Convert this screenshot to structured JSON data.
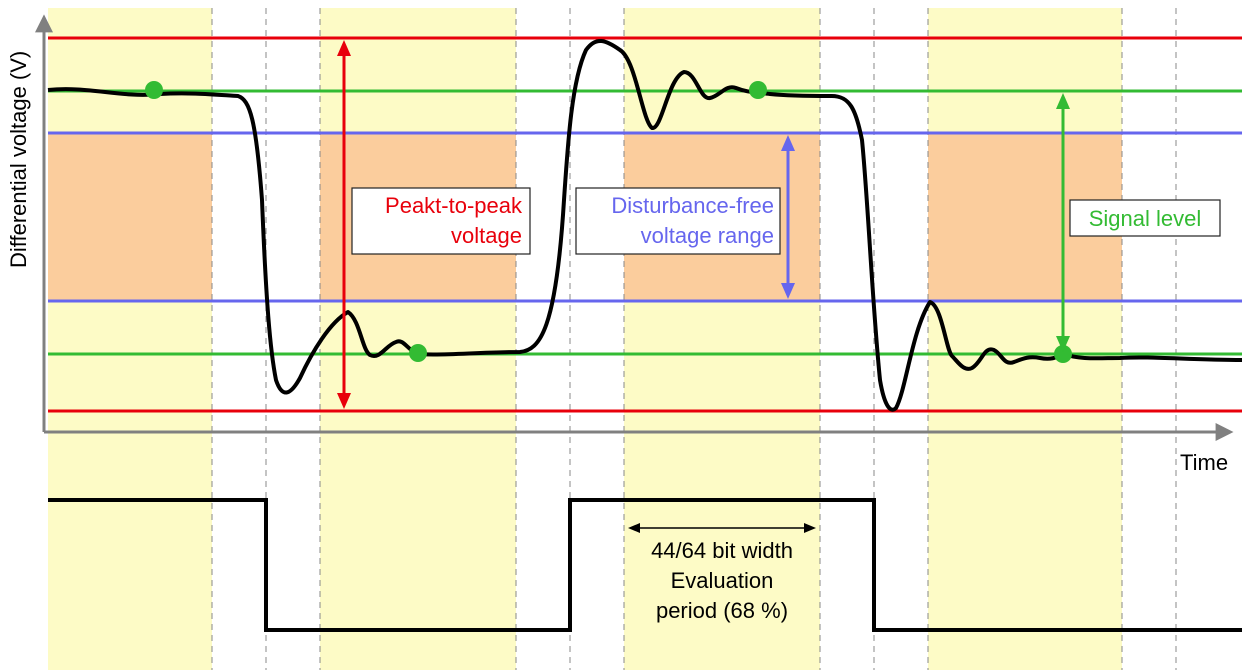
{
  "labels": {
    "y_axis": "Differential voltage (V)",
    "x_axis": "Time",
    "peak_line1": "Peakt-to-peak",
    "peak_line2": "voltage",
    "dist_line1": "Disturbance-free",
    "dist_line2": "voltage range",
    "signal": "Signal level",
    "eval_line1": "44/64 bit width",
    "eval_line2": "Evaluation",
    "eval_line3": "period (68 %)"
  },
  "colors": {
    "peak": "#e8000b",
    "disturbance": "#6666ee",
    "signal": "#33bb33",
    "evaluation_band": "#fdfbc6",
    "forbidden_zone": "#fbcd9d",
    "axis": "#808080",
    "waveform": "#000000"
  }
}
